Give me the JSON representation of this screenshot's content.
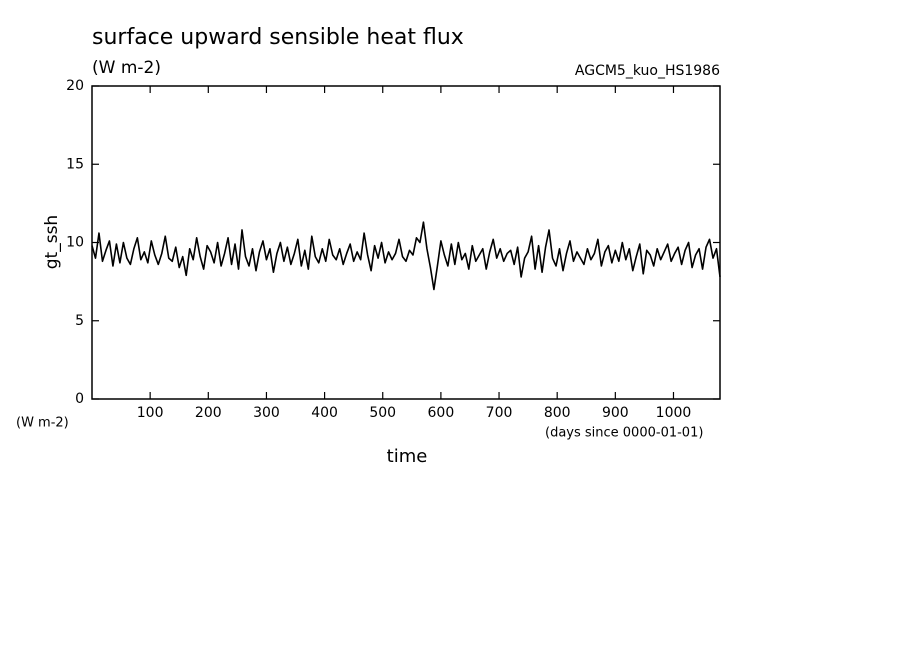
{
  "chart_data": {
    "type": "line",
    "title": "surface upward sensible heat flux",
    "subtitle": "(W m-2)",
    "annotation": "AGCM5_kuo_HS1986",
    "y_label": "gt_ssh",
    "y_unit": "(W m-2)",
    "x_label": "time",
    "x_unit": "(days since 0000-01-01)",
    "xlim": [
      0,
      1080
    ],
    "xticks": [
      100,
      200,
      300,
      400,
      500,
      600,
      700,
      800,
      900,
      1000
    ],
    "ylim": [
      0,
      20
    ],
    "yticks": [
      0,
      5,
      10,
      15,
      20
    ],
    "grid": false,
    "x": [
      0,
      6,
      12,
      18,
      24,
      30,
      36,
      42,
      48,
      54,
      60,
      66,
      72,
      78,
      84,
      90,
      96,
      102,
      108,
      114,
      120,
      126,
      132,
      138,
      144,
      150,
      156,
      162,
      168,
      174,
      180,
      186,
      192,
      198,
      204,
      210,
      216,
      222,
      228,
      234,
      240,
      246,
      252,
      258,
      264,
      270,
      276,
      282,
      288,
      294,
      300,
      306,
      312,
      318,
      324,
      330,
      336,
      342,
      348,
      354,
      360,
      366,
      372,
      378,
      384,
      390,
      396,
      402,
      408,
      414,
      420,
      426,
      432,
      438,
      444,
      450,
      456,
      462,
      468,
      474,
      480,
      486,
      492,
      498,
      504,
      510,
      516,
      522,
      528,
      534,
      540,
      546,
      552,
      558,
      564,
      570,
      576,
      582,
      588,
      594,
      600,
      606,
      612,
      618,
      624,
      630,
      636,
      642,
      648,
      654,
      660,
      666,
      672,
      678,
      684,
      690,
      696,
      702,
      708,
      714,
      720,
      726,
      732,
      738,
      744,
      750,
      756,
      762,
      768,
      774,
      780,
      786,
      792,
      798,
      804,
      810,
      816,
      822,
      828,
      834,
      840,
      846,
      852,
      858,
      864,
      870,
      876,
      882,
      888,
      894,
      900,
      906,
      912,
      918,
      924,
      930,
      936,
      942,
      948,
      954,
      960,
      966,
      972,
      978,
      984,
      990,
      996,
      1002,
      1008,
      1014,
      1020,
      1026,
      1032,
      1038,
      1044,
      1050,
      1056,
      1062,
      1068,
      1074,
      1080
    ],
    "series": [
      {
        "name": "gt_ssh",
        "color": "#000000",
        "values": [
          9.8,
          9.0,
          10.6,
          8.8,
          9.5,
          10.1,
          8.5,
          9.9,
          8.7,
          10.0,
          9.0,
          8.6,
          9.6,
          10.3,
          8.9,
          9.4,
          8.7,
          10.1,
          9.2,
          8.6,
          9.3,
          10.4,
          9.0,
          8.8,
          9.7,
          8.4,
          9.1,
          7.9,
          9.6,
          8.9,
          10.3,
          9.1,
          8.3,
          9.8,
          9.4,
          8.7,
          10.0,
          8.5,
          9.3,
          10.3,
          8.6,
          9.9,
          8.3,
          10.8,
          9.1,
          8.5,
          9.6,
          8.2,
          9.4,
          10.1,
          8.9,
          9.6,
          8.1,
          9.3,
          10.0,
          8.8,
          9.7,
          8.6,
          9.3,
          10.2,
          8.5,
          9.5,
          8.3,
          10.4,
          9.1,
          8.7,
          9.6,
          8.8,
          10.2,
          9.2,
          8.9,
          9.6,
          8.6,
          9.3,
          9.9,
          8.8,
          9.4,
          8.9,
          10.6,
          9.2,
          8.2,
          9.8,
          9.0,
          10.0,
          8.7,
          9.4,
          8.9,
          9.3,
          10.2,
          9.1,
          8.8,
          9.5,
          9.2,
          10.3,
          10.0,
          11.3,
          9.6,
          8.4,
          7.0,
          8.5,
          10.1,
          9.2,
          8.5,
          9.9,
          8.6,
          10.0,
          8.9,
          9.3,
          8.3,
          9.8,
          8.8,
          9.2,
          9.6,
          8.3,
          9.4,
          10.2,
          9.0,
          9.6,
          8.8,
          9.3,
          9.5,
          8.6,
          9.7,
          7.8,
          9.0,
          9.4,
          10.4,
          8.3,
          9.8,
          8.1,
          9.7,
          10.8,
          9.0,
          8.5,
          9.6,
          8.2,
          9.3,
          10.1,
          8.8,
          9.4,
          9.0,
          8.6,
          9.6,
          8.9,
          9.3,
          10.2,
          8.5,
          9.4,
          9.8,
          8.7,
          9.5,
          8.8,
          10.0,
          8.9,
          9.6,
          8.2,
          9.1,
          9.9,
          8.0,
          9.5,
          9.2,
          8.5,
          9.6,
          8.9,
          9.4,
          9.9,
          8.8,
          9.3,
          9.7,
          8.6,
          9.5,
          10.0,
          8.4,
          9.2,
          9.6,
          8.3,
          9.7,
          10.2,
          9.0,
          9.6,
          7.8
        ]
      }
    ]
  }
}
